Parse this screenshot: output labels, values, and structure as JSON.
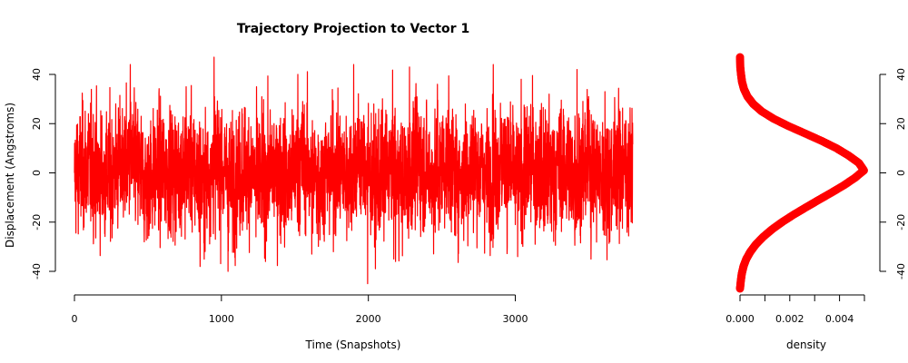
{
  "chart_data": [
    {
      "type": "line",
      "title": "Trajectory Projection to Vector 1",
      "xlabel": "Time (Snapshots)",
      "ylabel": "Displacement (Angstroms)",
      "xlim": [
        0,
        3800
      ],
      "ylim": [
        -47,
        47
      ],
      "x_ticks": [
        0,
        1000,
        2000,
        3000
      ],
      "x_tick_labels": [
        "0",
        "1000",
        "2000",
        "3000"
      ],
      "y_ticks": [
        -40,
        -20,
        0,
        20,
        40
      ],
      "y_tick_labels": [
        "-40",
        "-20",
        "0",
        "20",
        "40"
      ],
      "grid": false,
      "series": [
        {
          "color": "#ff0000",
          "n_points": 3800,
          "mean": 0,
          "sd": 15,
          "min": -47,
          "max": 47,
          "representative_values": [
            0,
            24,
            -17,
            12,
            44,
            -28,
            18,
            -6,
            35,
            -38,
            47,
            -40,
            26,
            -26,
            13,
            -22,
            40,
            -33,
            12,
            -5,
            44,
            -45,
            20,
            -36,
            43,
            -18,
            36,
            -24,
            28,
            -12,
            44,
            -30,
            38,
            -29,
            32,
            -15,
            42,
            -35,
            33,
            10
          ]
        }
      ]
    },
    {
      "type": "line",
      "title": "",
      "xlabel": "density",
      "ylabel": "",
      "xlim": [
        0,
        0.005
      ],
      "ylim": [
        -47,
        47
      ],
      "x_ticks": [
        0,
        0.001,
        0.002,
        0.003,
        0.004,
        0.005
      ],
      "x_tick_labels": [
        "0.000",
        "",
        "0.002",
        "",
        "0.004",
        ""
      ],
      "y_ticks": [
        -40,
        -20,
        0,
        20,
        40
      ],
      "y_tick_labels": [
        "-40",
        "-20",
        "0",
        "20",
        "40"
      ],
      "y_axis_side": "right",
      "grid": false,
      "series": [
        {
          "color": "#ff0000",
          "y": [
            -47,
            -44,
            -41,
            -38,
            -35,
            -32,
            -29,
            -26,
            -23,
            -20,
            -17,
            -14,
            -11,
            -8,
            -5,
            -2,
            1,
            4,
            7,
            10,
            13,
            16,
            19,
            22,
            25,
            28,
            31,
            34,
            37,
            40,
            43,
            47
          ],
          "density": [
            0.0,
            3e-05,
            7e-05,
            0.00014,
            0.00025,
            0.00042,
            0.00064,
            0.00093,
            0.00128,
            0.00169,
            0.00215,
            0.00265,
            0.00316,
            0.00368,
            0.00418,
            0.00462,
            0.00498,
            0.00478,
            0.00437,
            0.00388,
            0.00328,
            0.00262,
            0.00195,
            0.00135,
            0.00087,
            0.00053,
            0.0003,
            0.00016,
            8e-05,
            4e-05,
            1e-05,
            0.0
          ]
        }
      ]
    }
  ]
}
